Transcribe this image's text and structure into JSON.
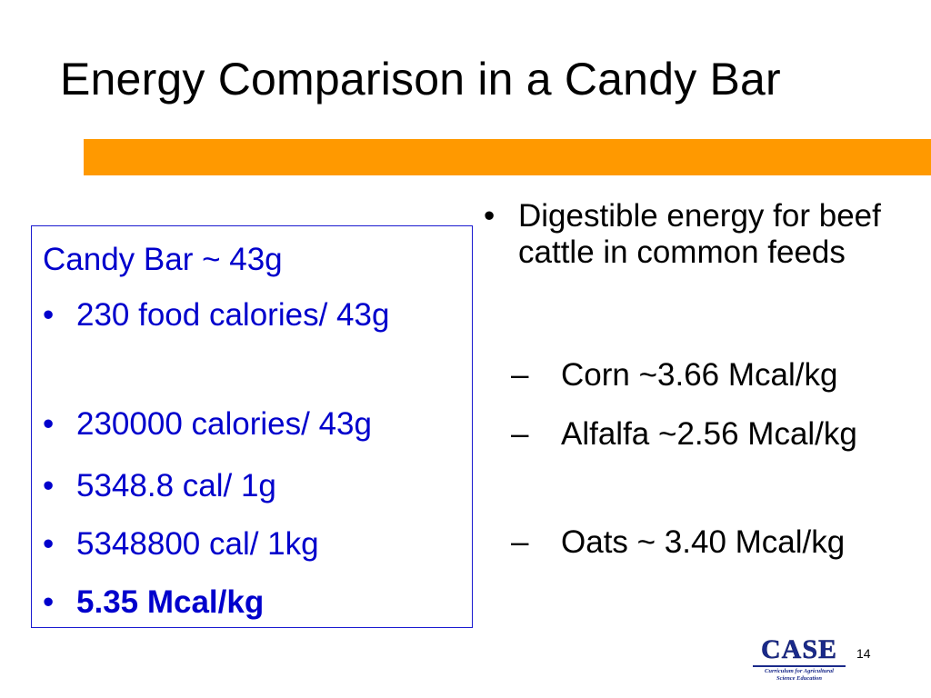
{
  "slide": {
    "title": "Energy Comparison in a Candy Bar",
    "accent_color": "#FF9900",
    "page_number": "14"
  },
  "left_box": {
    "heading": "Candy Bar ~ 43g",
    "text_color": "#0000CC",
    "bullets": [
      "230 food calories/ 43g",
      "230000 calories/ 43g",
      "5348.8 cal/ 1g",
      "5348800 cal/ 1kg",
      "5.35 Mcal/kg"
    ],
    "bullet_symbol": "•"
  },
  "right_column": {
    "bullet_symbol": "•",
    "dash_symbol": "–",
    "main_bullet": "Digestible energy for beef cattle in common feeds",
    "sub_items": [
      "Corn ~3.66 Mcal/kg",
      "Alfalfa ~2.56 Mcal/kg",
      "Oats ~ 3.40 Mcal/kg"
    ]
  },
  "logo": {
    "word": "CASE",
    "tagline_1": "Curriculum for Agricultural",
    "tagline_2": "Science Education"
  }
}
